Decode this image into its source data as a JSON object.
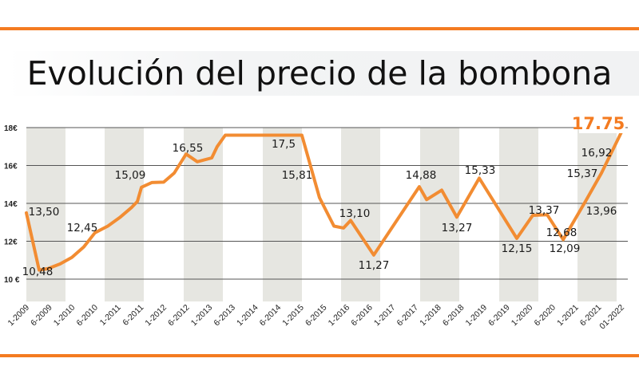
{
  "colors": {
    "accent": "#f47b20",
    "line": "#f28c32",
    "band": "#e6e6e1",
    "grid": "#555555"
  },
  "chart_data": {
    "type": "line",
    "title": "Evolución del precio de la bombona",
    "xlabel": "",
    "ylabel": "",
    "ylim": [
      8.8,
      18
    ],
    "yticks": [
      {
        "value": 18,
        "label": "18€"
      },
      {
        "value": 16,
        "label": "16€"
      },
      {
        "value": 14,
        "label": "14€"
      },
      {
        "value": 12,
        "label": "12€"
      },
      {
        "value": 10,
        "label": "10 €"
      }
    ],
    "grid": true,
    "categories": [
      "1-2009",
      "6-2009",
      "1-2010",
      "6-2010",
      "1-2011",
      "6-2011",
      "1-2012",
      "6-2012",
      "1-2013",
      "6-2013",
      "1-2014",
      "6-2014",
      "1-2015",
      "6-2015",
      "1-2016",
      "6-2016",
      "1-2017",
      "6-2017",
      "1-2018",
      "6-2018",
      "1-2019",
      "6-2019",
      "1-2020",
      "6-2020",
      "1-2021",
      "6-2021",
      "01-2022"
    ],
    "series": [
      {
        "x": [
          0,
          0.56,
          0.94,
          1.47,
          1.99,
          2.51,
          3.0,
          3.56,
          4.08,
          4.61,
          4.85,
          5.03,
          5.48,
          6.0,
          6.46,
          6.98,
          7.47,
          8.1,
          8.34,
          8.69,
          12.04,
          12.81,
          13.44,
          13.86,
          14.17,
          15.18,
          17.17,
          17.49,
          18.15,
          18.81,
          19.79,
          21.43,
          22.13,
          22.76,
          23.46,
          24.43,
          25.13,
          26
        ],
        "values": [
          13.5,
          10.48,
          10.55,
          10.8,
          11.15,
          11.7,
          12.45,
          12.8,
          13.25,
          13.8,
          14.1,
          14.85,
          15.1,
          15.12,
          15.6,
          16.6,
          16.2,
          16.4,
          17.0,
          17.6,
          17.6,
          14.3,
          12.8,
          12.7,
          13.1,
          11.27,
          14.88,
          14.2,
          14.7,
          13.27,
          15.33,
          12.15,
          13.37,
          13.4,
          12.09,
          14.1,
          15.6,
          17.75
        ]
      }
    ],
    "annotations": [
      "13,50",
      "10,48",
      "12,45",
      "15,09",
      "16,55",
      "17,5",
      "15,81",
      "13,10",
      "11,27",
      "14,88",
      "13,27",
      "15,33",
      "12,15",
      "13,37",
      "12,09",
      "12,68",
      "13,96",
      "15,37",
      "16,92",
      "17.75"
    ]
  }
}
